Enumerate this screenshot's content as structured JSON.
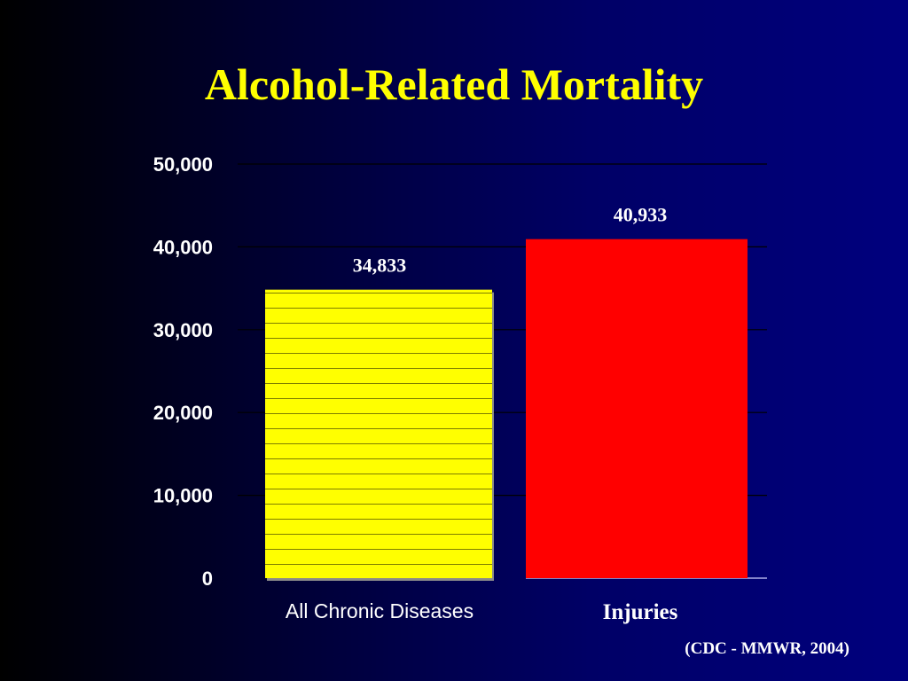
{
  "slide": {
    "title": "Alcohol-Related Mortality",
    "source": "(CDC - MMWR, 2004)"
  },
  "colors": {
    "title": "#ffff00",
    "text": "#ffffff",
    "gridline": "#000000",
    "bar_yellow": "#ffff00",
    "bar_red": "#ff0000",
    "bar_yellow_stripe": "#555500"
  },
  "chart_data": {
    "type": "bar",
    "title": "Alcohol-Related Mortality",
    "categories": [
      "All Chronic Diseases",
      "Injuries"
    ],
    "values": [
      34833,
      40933
    ],
    "data_labels": [
      "34,833",
      "40,933"
    ],
    "bar_colors": [
      "#ffff00",
      "#ff0000"
    ],
    "ylim": [
      0,
      50000
    ],
    "yticks": [
      0,
      10000,
      20000,
      30000,
      40000,
      50000
    ],
    "ytick_labels": [
      "0",
      "10,000",
      "20,000",
      "30,000",
      "40,000",
      "50,000"
    ],
    "grid": true,
    "legend": "none"
  }
}
